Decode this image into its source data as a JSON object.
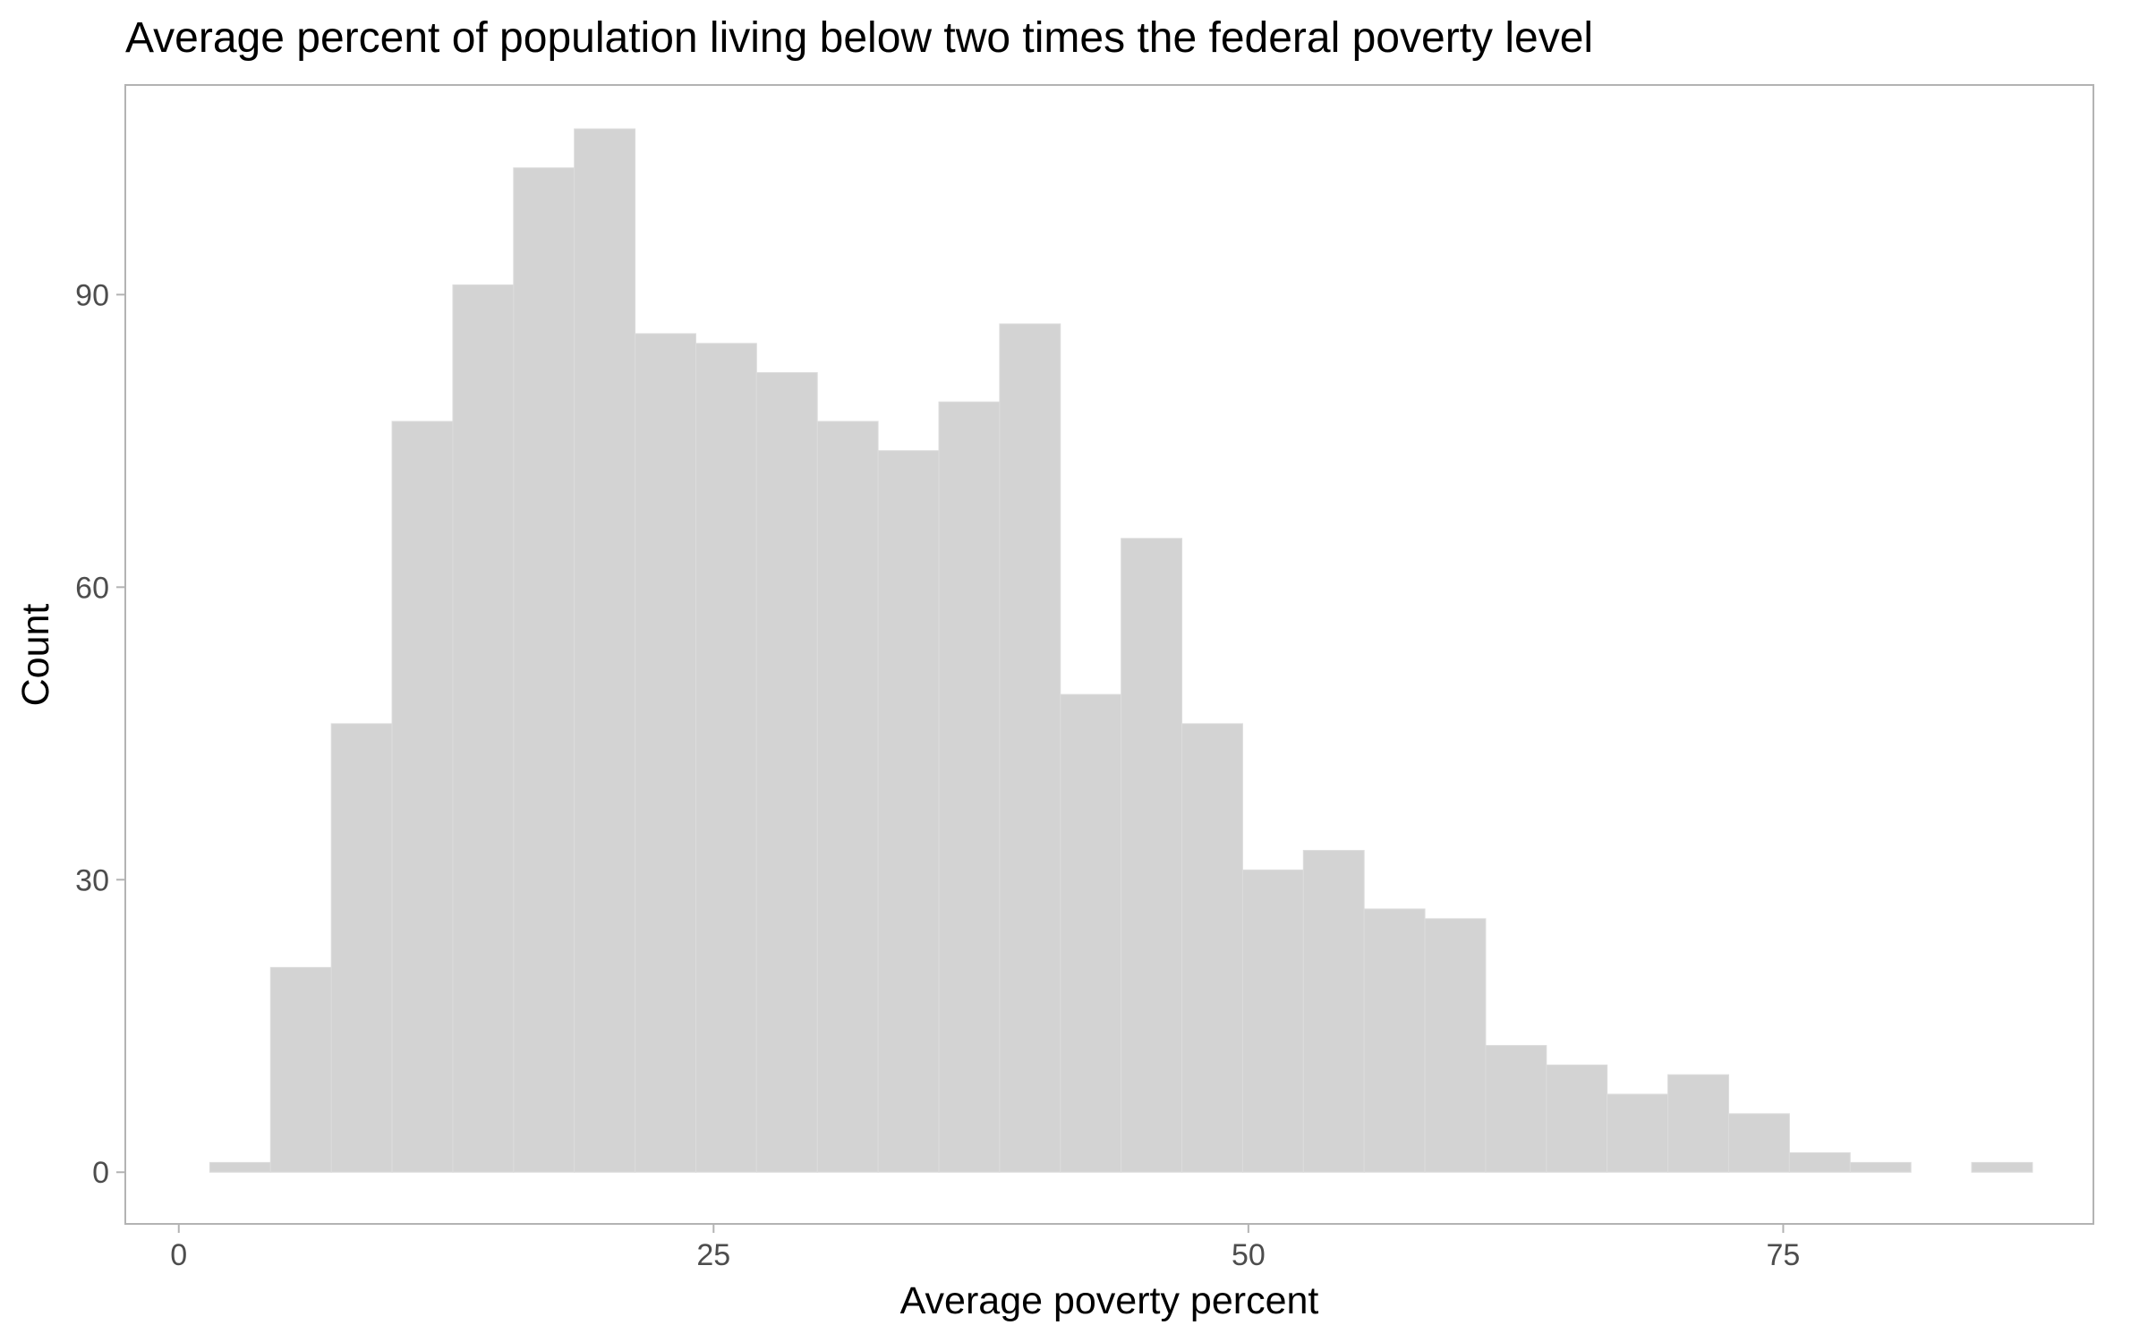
{
  "chart_data": {
    "type": "bar",
    "title": "Average percent of population living below two times the federal poverty level",
    "xlabel": "Average poverty percent",
    "ylabel": "Count",
    "xlim": [
      -2.5,
      89.5
    ],
    "ylim": [
      -5.3,
      111.5
    ],
    "xticks": [
      0,
      25,
      50,
      75
    ],
    "yticks": [
      0,
      30,
      60,
      90
    ],
    "grid": false,
    "legend": "none",
    "bin_width": 2.84,
    "bin_start": 1.45,
    "counts": [
      1,
      21,
      46,
      77,
      91,
      103,
      107,
      86,
      85,
      82,
      77,
      74,
      79,
      87,
      49,
      65,
      46,
      31,
      33,
      27,
      26,
      13,
      11,
      8,
      10,
      6,
      2,
      1,
      0,
      1
    ],
    "colors": {
      "bar_fill": "#d3d3d3",
      "bar_outline": "#dcdcdc",
      "panel_border": "#b3b3b3",
      "tick_color": "#b3b3b3",
      "tick_label_color": "#4d4d4d"
    }
  }
}
